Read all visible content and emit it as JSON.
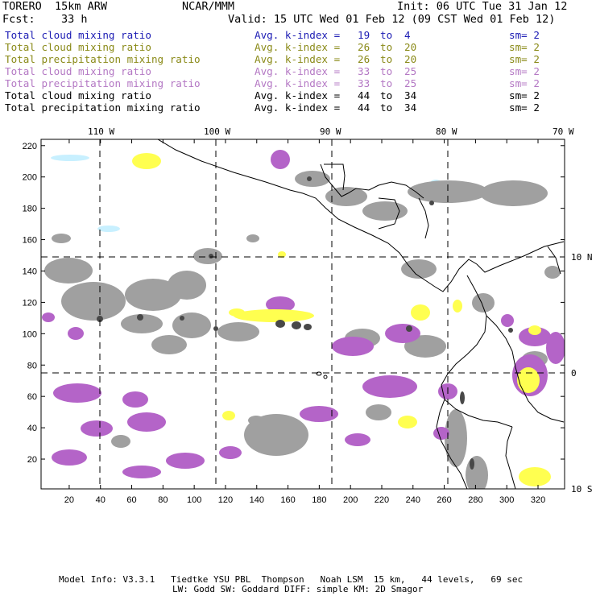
{
  "header": {
    "model": "TORERO  15km ARW",
    "org": "NCAR/MMM",
    "init": "Init: 06 UTC Tue 31 Jan 12",
    "fcst_label": "Fcst:",
    "fcst_value": "33 h",
    "valid": "Valid: 15 UTC Wed 01 Feb 12 (09 CST Wed 01 Feb 12)"
  },
  "legend": [
    {
      "field": "Total cloud mixing ratio",
      "index": "Avg. k-index =",
      "from": "19",
      "to_word": "to",
      "to": "4",
      "sm": "sm= 2",
      "color": "#1c1cb4"
    },
    {
      "field": "Total cloud mixing ratio",
      "index": "Avg. k-index =",
      "from": "26",
      "to_word": "to",
      "to": "20",
      "sm": "sm= 2",
      "color": "#8a8a18"
    },
    {
      "field": "Total precipitation mixing ratio",
      "index": "Avg. k-index =",
      "from": "26",
      "to_word": "to",
      "to": "20",
      "sm": "sm= 2",
      "color": "#8a8a18"
    },
    {
      "field": "Total cloud mixing ratio",
      "index": "Avg. k-index =",
      "from": "33",
      "to_word": "to",
      "to": "25",
      "sm": "sm= 2",
      "color": "#b478c4"
    },
    {
      "field": "Total precipitation mixing ratio",
      "index": "Avg. k-index =",
      "from": "33",
      "to_word": "to",
      "to": "25",
      "sm": "sm= 2",
      "color": "#b478c4"
    },
    {
      "field": "Total cloud mixing ratio",
      "index": "Avg. k-index =",
      "from": "44",
      "to_word": "to",
      "to": "34",
      "sm": "sm= 2",
      "color": "#000000"
    },
    {
      "field": "Total precipitation mixing ratio",
      "index": "Avg. k-index =",
      "from": "44",
      "to_word": "to",
      "to": "34",
      "sm": "sm= 2",
      "color": "#000000"
    }
  ],
  "map": {
    "lon_labels": [
      "110 W",
      "100 W",
      "90 W",
      "80 W",
      "70 W"
    ],
    "lat_labels": [
      "10 N",
      "0",
      "10 S"
    ],
    "x_ticks": [
      "20",
      "40",
      "60",
      "80",
      "100",
      "120",
      "140",
      "160",
      "180",
      "200",
      "220",
      "240",
      "260",
      "280",
      "300",
      "320"
    ],
    "y_ticks": [
      "20",
      "40",
      "60",
      "80",
      "100",
      "120",
      "140",
      "160",
      "180",
      "200",
      "220"
    ],
    "colors": {
      "cloud_gray": "#a0a0a0",
      "cloud_dark": "#484848",
      "precip_purple": "#b464c8",
      "precip_yellow": "#ffff50",
      "light_blue": "#c8f0ff"
    }
  },
  "footer": {
    "line1": "Model Info: V3.3.1   Tiedtke YSU PBL  Thompson   Noah LSM  15 km,   44 levels,   69 sec",
    "line2": "LW: Godd SW: Goddard DIFF: simple KM: 2D Smagor"
  }
}
